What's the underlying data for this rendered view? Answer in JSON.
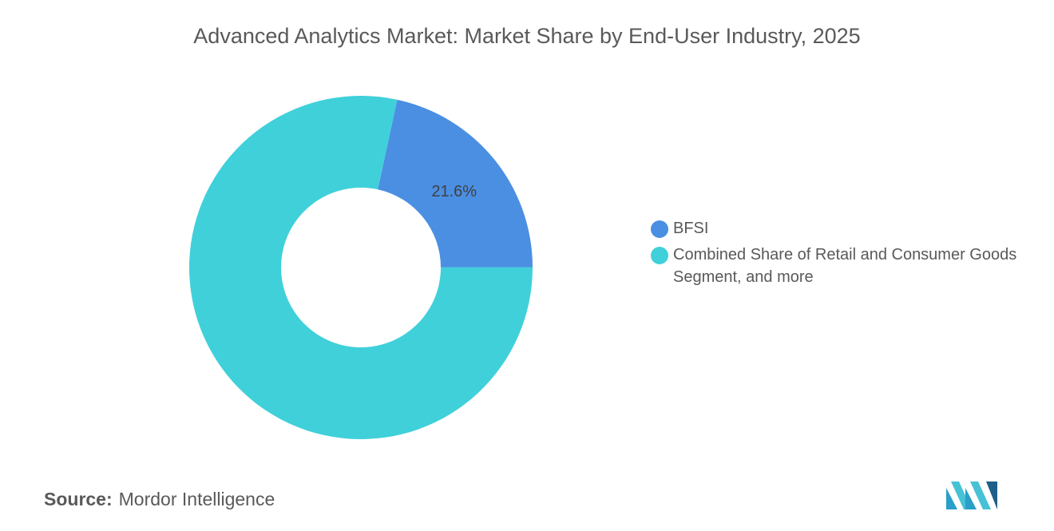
{
  "chart_data": {
    "type": "donut",
    "title": "Advanced Analytics Market: Market Share by End-User Industry, 2025",
    "categories": [
      "BFSI",
      "Combined Share of Retail and Consumer Goods Segment, and more"
    ],
    "values": [
      21.6,
      78.4
    ],
    "value_labels": [
      "21.6%",
      null
    ],
    "colors": [
      "#4b8fe2",
      "#40d0da"
    ],
    "source_label": "Source:",
    "source": "Mordor Intelligence"
  }
}
